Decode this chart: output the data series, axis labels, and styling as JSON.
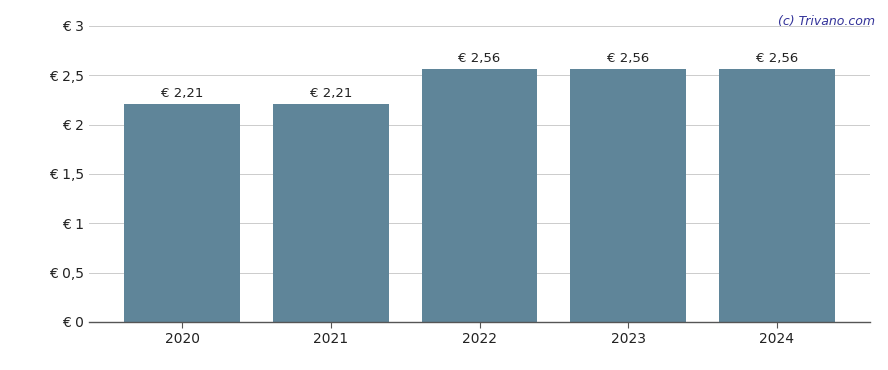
{
  "categories": [
    "2020",
    "2021",
    "2022",
    "2023",
    "2024"
  ],
  "values": [
    2.21,
    2.21,
    2.56,
    2.56,
    2.56
  ],
  "bar_color": "#5f8599",
  "bar_labels": [
    "€ 2,21",
    "€ 2,21",
    "€ 2,56",
    "€ 2,56",
    "€ 2,56"
  ],
  "ylim": [
    0,
    3
  ],
  "yticks": [
    0,
    0.5,
    1.0,
    1.5,
    2.0,
    2.5,
    3.0
  ],
  "ytick_labels": [
    "€ 0",
    "€ 0,5",
    "€ 1",
    "€ 1,5",
    "€ 2",
    "€ 2,5",
    "€ 3"
  ],
  "background_color": "#ffffff",
  "watermark": "(c) Trivano.com",
  "watermark_color": "#333399",
  "grid_color": "#cccccc",
  "bar_width": 0.78,
  "label_fontsize": 9.5,
  "tick_fontsize": 10
}
